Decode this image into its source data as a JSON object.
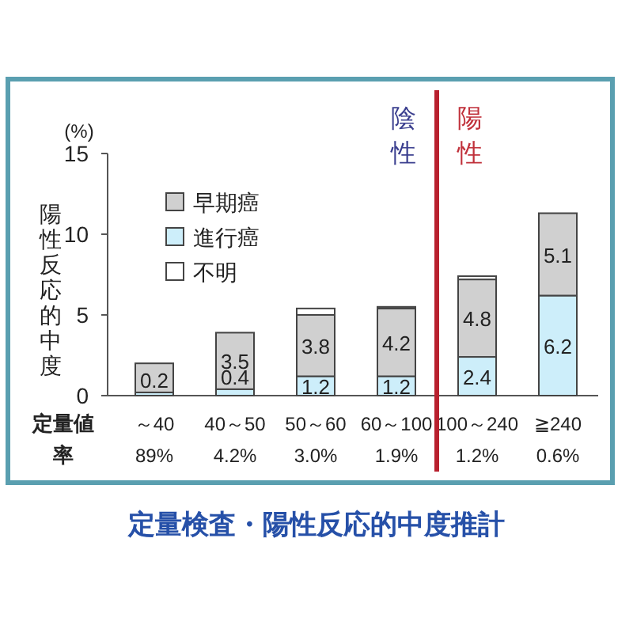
{
  "chart_data": {
    "type": "bar",
    "stacked": true,
    "title": "定量検査・陽性反応的中度推計",
    "ylabel": "陽性反応的中度",
    "ylim": [
      0,
      15
    ],
    "yticks": [
      0,
      5,
      10,
      15
    ],
    "categories": [
      "～40\n89%",
      "40～50\n4.2%",
      "50～60\n3.0%",
      "60～100\n1.9%",
      "100～240\n1.2%",
      "≧240\n0.6%"
    ],
    "series": [
      {
        "name": "進行癌",
        "color": "#cdeefa",
        "values": [
          0.2,
          0.4,
          1.2,
          1.2,
          2.4,
          6.2
        ],
        "value_labels": [
          "0.2",
          "0.4",
          "1.2",
          "1.2",
          "2.4",
          "6.2"
        ]
      },
      {
        "name": "早期癌",
        "color": "#d0d0d0",
        "values": [
          1.8,
          3.5,
          3.8,
          4.2,
          4.8,
          5.1
        ],
        "value_labels": [
          null,
          "3.5",
          "3.8",
          "4.2",
          "4.8",
          "5.1"
        ]
      },
      {
        "name": "不明",
        "color": "#ffffff",
        "values": [
          0,
          0,
          0.4,
          0.1,
          0.2,
          0
        ],
        "value_labels": [
          null,
          null,
          null,
          null,
          null,
          null
        ]
      }
    ],
    "legend": "top left",
    "ref_lines": [
      {
        "axis": "x",
        "value": "100～240\n1.2%",
        "color": "#b8202e"
      }
    ],
    "annotations": [
      "(%)",
      "陰性",
      "陽性",
      "定量値",
      "率"
    ]
  }
}
